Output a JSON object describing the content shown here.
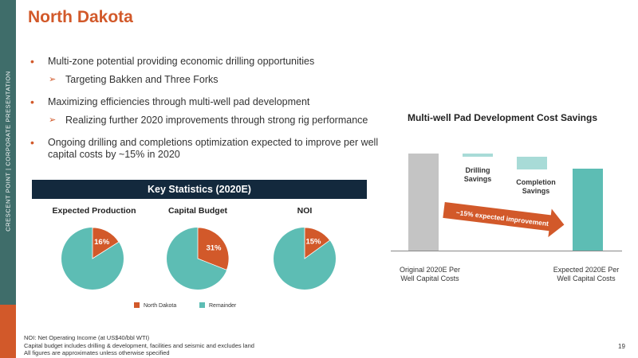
{
  "sidebar": {
    "text": "CRESCENT POINT  |  CORPORATE PRESENTATION"
  },
  "title": "North Dakota",
  "bullets": [
    {
      "text": "Multi-zone potential providing economic drilling opportunities",
      "sub": "Targeting Bakken and Three Forks"
    },
    {
      "text": "Maximizing efficiencies through multi-well pad development",
      "sub": "Realizing further 2020 improvements through strong rig performance"
    },
    {
      "text": "Ongoing drilling and completions optimization expected to improve per well capital costs by ~15% in 2020",
      "sub": ""
    }
  ],
  "key_stats": {
    "header": "Key Statistics (2020E)",
    "pies": [
      {
        "title": "Expected Production",
        "value": 16,
        "label": "16%"
      },
      {
        "title": "Capital Budget",
        "value": 31,
        "label": "31%"
      },
      {
        "title": "NOI",
        "value": 15,
        "label": "15%"
      }
    ],
    "legend": [
      "North Dakota",
      "Remainder"
    ]
  },
  "colors": {
    "orange": "#d2592a",
    "teal": "#5dbdb4",
    "light_teal": "#a8dbd7",
    "gray": "#c4c4c4",
    "navy": "#13293d",
    "sidebar": "#3f6d6a"
  },
  "waterfall": {
    "title": "Multi-well Pad Development Cost Savings",
    "label_original": "Original 2020E Per\nWell Capital Costs",
    "label_drilling": "Drilling\nSavings",
    "label_completion": "Completion\nSavings",
    "label_expected": "Expected 2020E Per\nWell Capital Costs",
    "arrow_text": "~15% expected improvement"
  },
  "footnotes": [
    "NOI: Net Operating Income (at US$40/bbl WTI)",
    "Capital budget includes drilling & development, facilities and seismic and excludes land",
    "All figures are approximates unless otherwise specified"
  ],
  "page_number": "19"
}
